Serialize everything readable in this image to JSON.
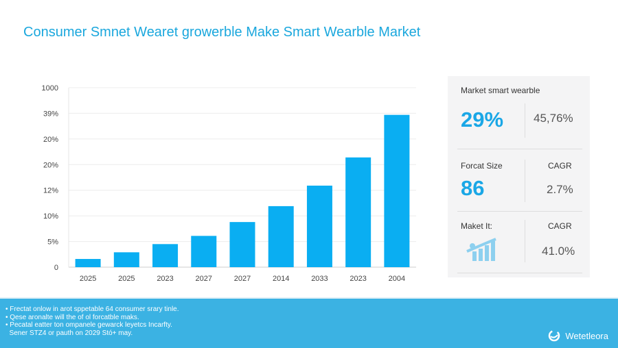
{
  "title": "Consumer Smnet Wearet growerble Make Smart Wearble Market",
  "chart_data": {
    "type": "bar",
    "categories": [
      "2025",
      "2025",
      "2023",
      "2027",
      "2027",
      "2014",
      "2033",
      "2023",
      "2004"
    ],
    "values": [
      1.6,
      2.9,
      4.5,
      6.1,
      8.8,
      11.9,
      15.9,
      21.4,
      29.7
    ],
    "ytick_labels": [
      "0",
      "5%",
      "10%",
      "12%",
      "20%",
      "20%",
      "39%",
      "1000"
    ],
    "ylim": [
      0,
      35
    ],
    "grid": true,
    "bar_color": "#0aaef2"
  },
  "panel": {
    "row1": {
      "label": "Market smart wearble",
      "big": "29%",
      "value": "45,76%"
    },
    "row2": {
      "label": "Forcat Size",
      "big": "86",
      "value_label": "CAGR",
      "value": "2.7%"
    },
    "row3": {
      "label": "Maket It:",
      "icon": "growth-chart-icon",
      "value_label": "CAGR",
      "value": "41.0%"
    }
  },
  "footer": {
    "notes": [
      "• Frectat onlow in arot sppetable 64 consumer srary tinle.",
      "• Qese aronalte will the of ol forcatble maks.",
      "• Pecatal eatter ton ompanele gewarck leyetcs Incarfty.",
      "  Sener STZ4 or pauth on 2029 Stó+ may."
    ],
    "brand": "Wetetleora",
    "bg_color": "#3bb2e3"
  },
  "accent": "#1aa7dd"
}
